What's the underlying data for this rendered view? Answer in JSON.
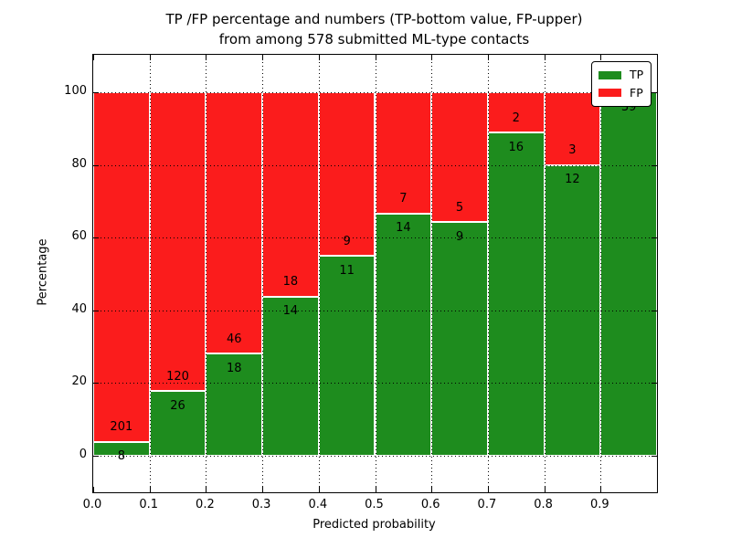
{
  "figure": {
    "title_line1": "TP /FP percentage and numbers (TP-bottom value, FP-upper)",
    "title_line2": "from among 578 submitted ML-type contacts"
  },
  "chart_data": {
    "type": "bar",
    "variant": "stacked-percentage-histogram",
    "title": "TP /FP percentage and numbers (TP-bottom value, FP-upper)\nfrom among 578 submitted ML-type contacts",
    "xlabel": "Predicted probability",
    "ylabel": "Percentage",
    "total_contacts": 578,
    "bin_edges": [
      0.0,
      0.1,
      0.2,
      0.3,
      0.4,
      0.5,
      0.6,
      0.7,
      0.8,
      0.9,
      1.0
    ],
    "categories": [
      "0.0-0.1",
      "0.1-0.2",
      "0.2-0.3",
      "0.3-0.4",
      "0.4-0.5",
      "0.5-0.6",
      "0.6-0.7",
      "0.7-0.8",
      "0.8-0.9",
      "0.9-1.0"
    ],
    "series": [
      {
        "name": "TP",
        "color": "#1e8c1e",
        "values": [
          8,
          26,
          18,
          14,
          11,
          14,
          9,
          16,
          12,
          39
        ]
      },
      {
        "name": "FP",
        "color": "#fb1c1c",
        "values": [
          201,
          120,
          46,
          18,
          9,
          7,
          5,
          2,
          3,
          0
        ]
      }
    ],
    "tp_percent": [
      3.8,
      17.8,
      28.1,
      43.8,
      55.0,
      66.7,
      64.3,
      88.9,
      80.0,
      100.0
    ],
    "x_tick_labels": [
      "0.0",
      "0.1",
      "0.2",
      "0.3",
      "0.4",
      "0.5",
      "0.6",
      "0.7",
      "0.8",
      "0.9"
    ],
    "y_ticks": [
      0,
      20,
      40,
      60,
      80,
      100
    ],
    "xlim": [
      0.0,
      1.0
    ],
    "ylim": [
      -10,
      110
    ],
    "grid": "dotted",
    "legend_position": "upper right"
  }
}
